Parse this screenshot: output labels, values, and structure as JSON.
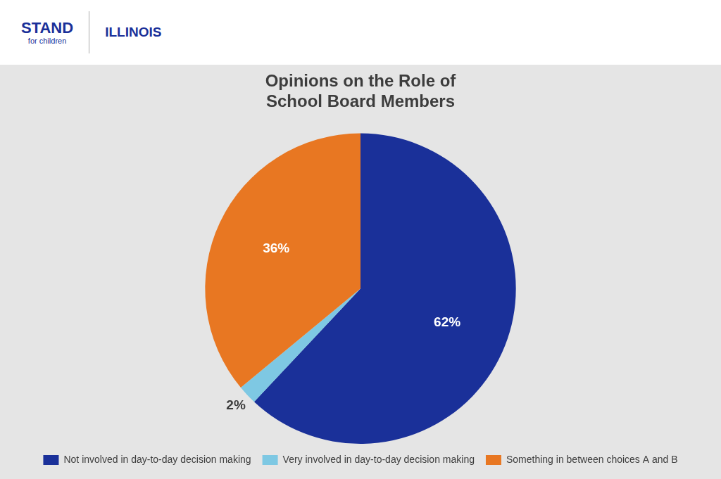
{
  "chart_data": {
    "type": "pie",
    "title": "Opinions on the Role of\nSchool Board Members",
    "categories": [
      "Not involved in day-to-day decision making",
      "Very involved in day-to-day decision making",
      "Something in between choices A and B"
    ],
    "values": [
      62,
      2,
      36
    ],
    "value_labels": [
      "62%",
      "2%",
      "36%"
    ],
    "colors": [
      "#1a3099",
      "#7ec8e3",
      "#e87722"
    ],
    "data_labels": true,
    "legend": "bottom",
    "annotations": [
      "STAND",
      "for children",
      "ILLINOIS"
    ]
  }
}
